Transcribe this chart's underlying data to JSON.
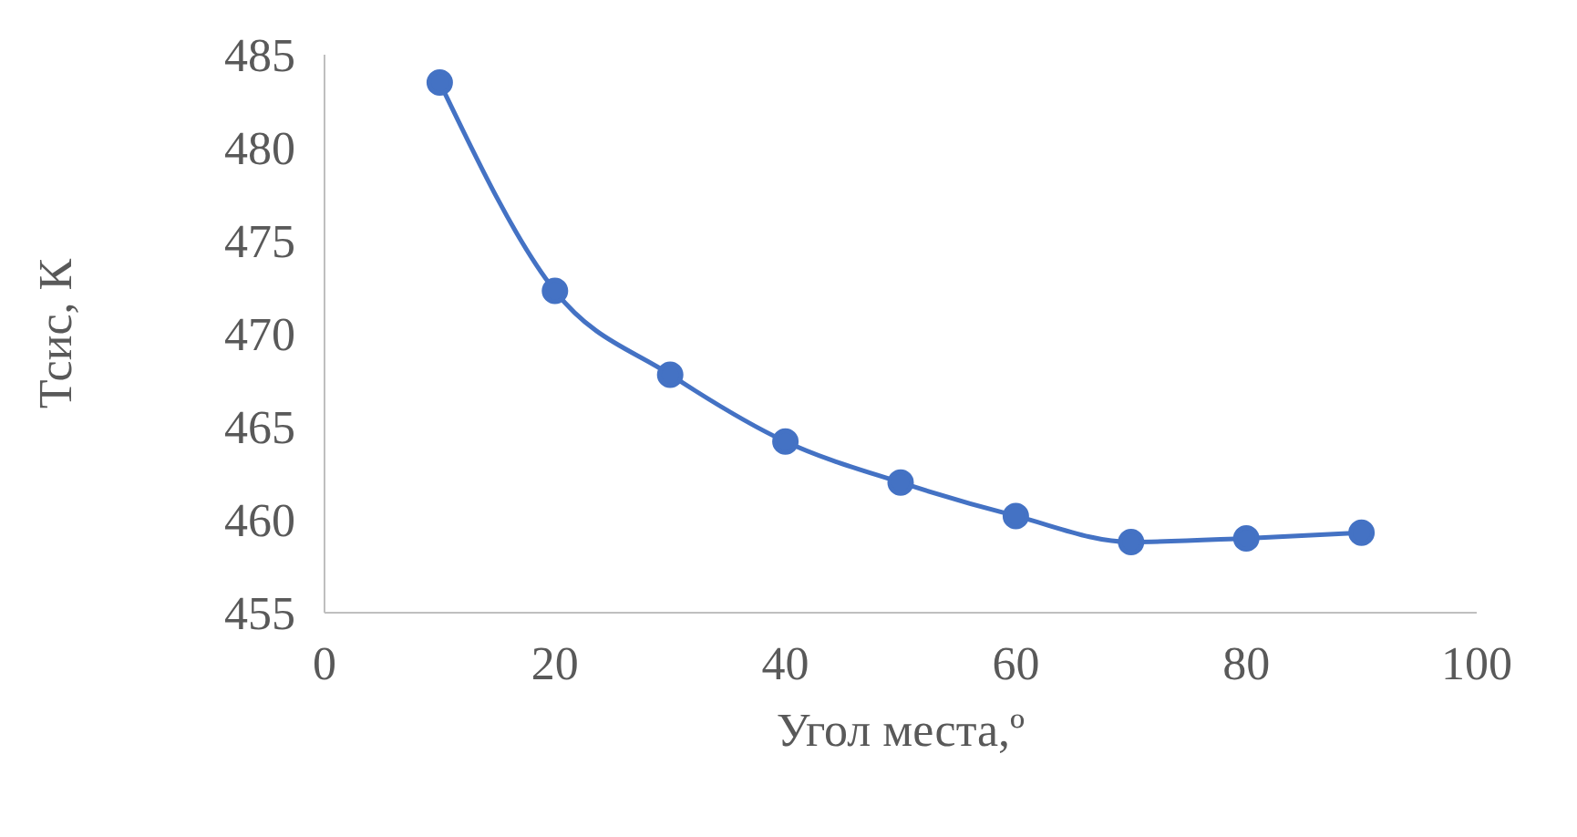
{
  "chart_data": {
    "type": "line",
    "xlabel": "Угол места,º",
    "ylabel": "Тсис, К",
    "x": [
      10,
      20,
      30,
      40,
      50,
      60,
      70,
      80,
      90
    ],
    "series": [
      {
        "color": "#4472c4",
        "values": [
          483.5,
          472.3,
          467.8,
          464.2,
          462.0,
          460.2,
          458.8,
          459.0,
          459.3
        ]
      }
    ],
    "xlim": [
      0,
      100
    ],
    "xticks": [
      0,
      20,
      40,
      60,
      80,
      100
    ],
    "ylim": [
      455,
      485
    ],
    "yticks": [
      455,
      460,
      465,
      470,
      475,
      480,
      485
    ],
    "grid": false,
    "legend": false,
    "marker": "circle",
    "line_style": "solid"
  }
}
